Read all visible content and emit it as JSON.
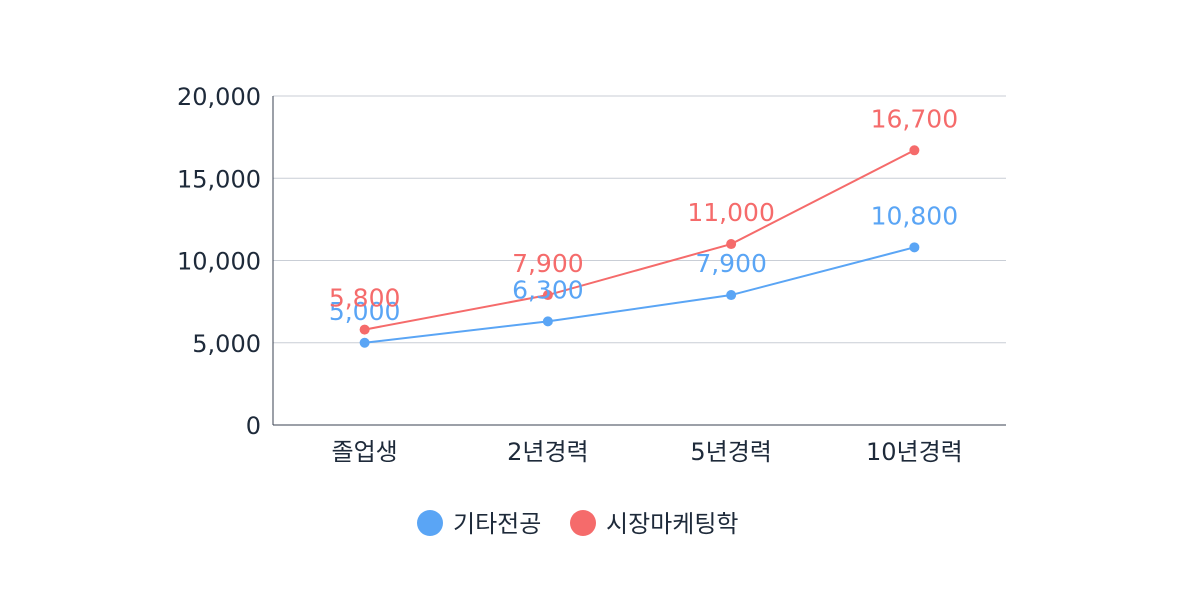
{
  "chart_data": {
    "type": "line",
    "categories": [
      "졸업생",
      "2년경력",
      "5년경력",
      "10년경력"
    ],
    "ylim": [
      0,
      20000
    ],
    "yticks": [
      0,
      5000,
      10000,
      15000,
      20000
    ],
    "ytick_labels": [
      "0",
      "5,000",
      "10,000",
      "15,000",
      "20,000"
    ],
    "grid": true,
    "legend_position": "bottom",
    "series": [
      {
        "name": "기타전공",
        "color": "#5aa5f5",
        "values": [
          5000,
          6300,
          7900,
          10800
        ],
        "labels": [
          "5,000",
          "6,300",
          "7,900",
          "10,800"
        ]
      },
      {
        "name": "시장마케팅학",
        "color": "#f56b6b",
        "values": [
          5800,
          7900,
          11000,
          16700
        ],
        "labels": [
          "5,800",
          "7,900",
          "11,000",
          "16,700"
        ]
      }
    ]
  }
}
